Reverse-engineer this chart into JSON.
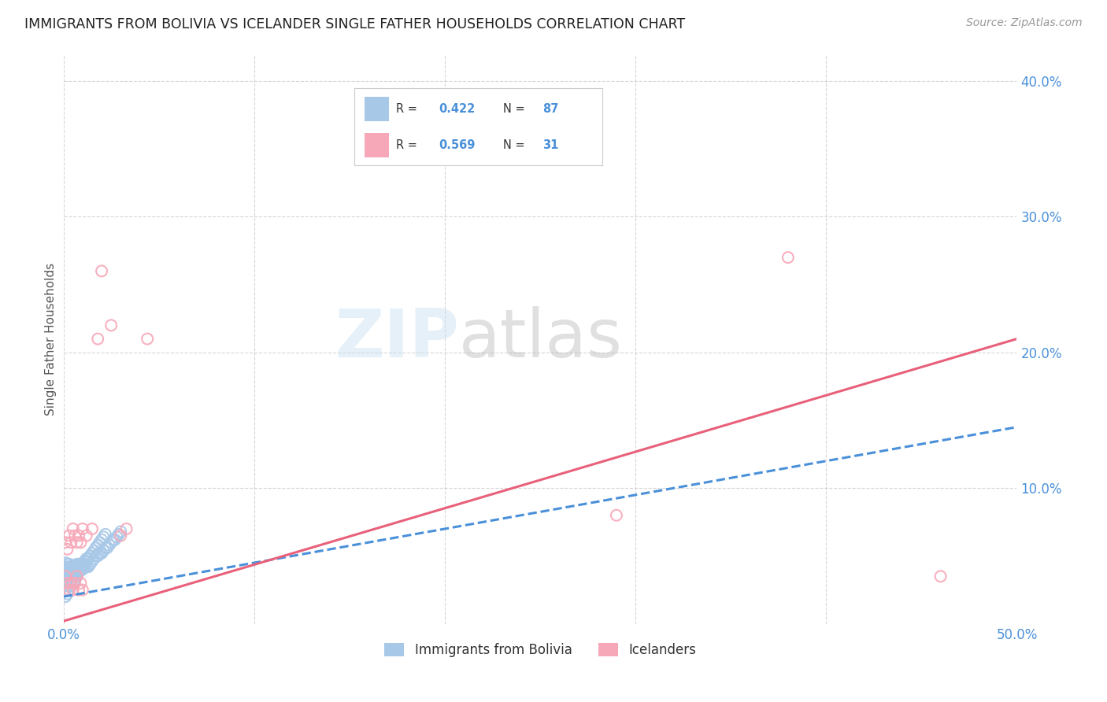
{
  "title": "IMMIGRANTS FROM BOLIVIA VS ICELANDER SINGLE FATHER HOUSEHOLDS CORRELATION CHART",
  "source": "Source: ZipAtlas.com",
  "ylabel": "Single Father Households",
  "xlim": [
    0.0,
    0.5
  ],
  "ylim": [
    0.0,
    0.42
  ],
  "xticks": [
    0.0,
    0.1,
    0.2,
    0.3,
    0.4,
    0.5
  ],
  "yticks": [
    0.1,
    0.2,
    0.3,
    0.4
  ],
  "right_ytick_labels": [
    "10.0%",
    "20.0%",
    "30.0%",
    "40.0%"
  ],
  "xtick_labels_bottom": [
    "0.0%",
    "",
    "",
    "",
    "",
    "50.0%"
  ],
  "blue_scatter_color": "#a8c8e8",
  "pink_scatter_color": "#f7a8b8",
  "blue_line_color": "#4a90d9",
  "pink_line_color": "#e8607a",
  "blue_R": "0.422",
  "blue_N": "87",
  "pink_R": "0.569",
  "pink_N": "31",
  "blue_legend_color": "#a8c8e8",
  "pink_legend_color": "#f7a8b8",
  "label_color": "#4a90d9",
  "bolivia_x": [
    0.001,
    0.001,
    0.001,
    0.001,
    0.002,
    0.002,
    0.002,
    0.002,
    0.002,
    0.003,
    0.003,
    0.003,
    0.003,
    0.003,
    0.004,
    0.004,
    0.004,
    0.004,
    0.005,
    0.005,
    0.005,
    0.005,
    0.006,
    0.006,
    0.006,
    0.006,
    0.007,
    0.007,
    0.007,
    0.008,
    0.008,
    0.008,
    0.009,
    0.009,
    0.01,
    0.01,
    0.011,
    0.011,
    0.012,
    0.012,
    0.013,
    0.013,
    0.014,
    0.014,
    0.015,
    0.016,
    0.017,
    0.018,
    0.019,
    0.02,
    0.021,
    0.022,
    0.023,
    0.024,
    0.025,
    0.026,
    0.027,
    0.028,
    0.029,
    0.03,
    0.001,
    0.001,
    0.002,
    0.002,
    0.003,
    0.003,
    0.004,
    0.004,
    0.005,
    0.005,
    0.006,
    0.007,
    0.008,
    0.009,
    0.01,
    0.011,
    0.012,
    0.013,
    0.014,
    0.015,
    0.016,
    0.017,
    0.018,
    0.019,
    0.02,
    0.021,
    0.022
  ],
  "bolivia_y": [
    0.04,
    0.035,
    0.045,
    0.03,
    0.038,
    0.042,
    0.036,
    0.044,
    0.032,
    0.04,
    0.038,
    0.042,
    0.036,
    0.044,
    0.04,
    0.038,
    0.042,
    0.036,
    0.04,
    0.038,
    0.042,
    0.036,
    0.04,
    0.038,
    0.042,
    0.036,
    0.04,
    0.038,
    0.044,
    0.04,
    0.038,
    0.044,
    0.04,
    0.044,
    0.04,
    0.044,
    0.042,
    0.046,
    0.042,
    0.048,
    0.042,
    0.048,
    0.044,
    0.05,
    0.046,
    0.048,
    0.05,
    0.05,
    0.052,
    0.052,
    0.054,
    0.056,
    0.056,
    0.058,
    0.06,
    0.062,
    0.062,
    0.064,
    0.066,
    0.068,
    0.02,
    0.025,
    0.022,
    0.028,
    0.025,
    0.03,
    0.028,
    0.032,
    0.03,
    0.035,
    0.032,
    0.035,
    0.038,
    0.04,
    0.042,
    0.044,
    0.046,
    0.048,
    0.05,
    0.052,
    0.054,
    0.056,
    0.058,
    0.06,
    0.062,
    0.064,
    0.066
  ],
  "iceland_x": [
    0.001,
    0.002,
    0.003,
    0.004,
    0.005,
    0.006,
    0.007,
    0.008,
    0.009,
    0.01,
    0.012,
    0.015,
    0.018,
    0.02,
    0.025,
    0.03,
    0.033,
    0.044,
    0.29,
    0.38,
    0.46,
    0.001,
    0.002,
    0.003,
    0.004,
    0.005,
    0.006,
    0.007,
    0.008,
    0.009,
    0.01
  ],
  "iceland_y": [
    0.06,
    0.055,
    0.065,
    0.06,
    0.07,
    0.065,
    0.06,
    0.065,
    0.06,
    0.07,
    0.065,
    0.07,
    0.21,
    0.26,
    0.22,
    0.065,
    0.07,
    0.21,
    0.08,
    0.27,
    0.035,
    0.035,
    0.03,
    0.025,
    0.03,
    0.025,
    0.03,
    0.035,
    0.025,
    0.03,
    0.025
  ],
  "blue_line_x": [
    0.0,
    0.5
  ],
  "blue_line_y": [
    0.02,
    0.145
  ],
  "pink_line_x": [
    0.0,
    0.5
  ],
  "pink_line_y": [
    0.002,
    0.21
  ]
}
